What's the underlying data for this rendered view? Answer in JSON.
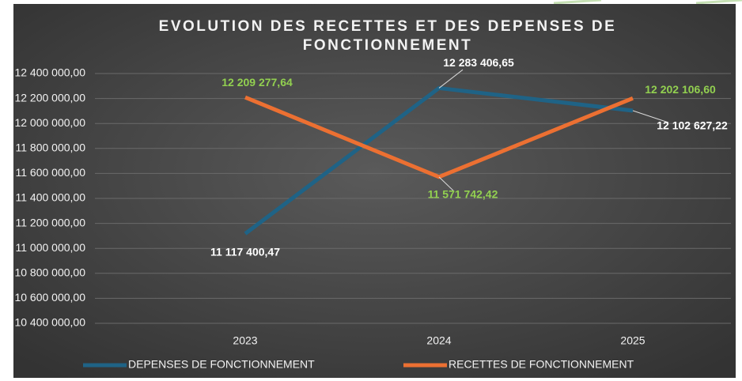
{
  "chart_data": {
    "type": "line",
    "title": "EVOLUTION DES RECETTES ET DES DEPENSES DE FONCTIONNEMENT",
    "categories": [
      "2023",
      "2024",
      "2025"
    ],
    "series": [
      {
        "name": "DEPENSES DE FONCTIONNEMENT",
        "color": "#1f6386",
        "label_color": "#ffffff",
        "values": [
          11117400.47,
          12283406.65,
          12102627.22
        ],
        "value_labels": [
          "11 117 400,47",
          "12 283 406,65",
          "12 102 627,22"
        ]
      },
      {
        "name": "RECETTES DE FONCTIONNEMENT",
        "color": "#ec7032",
        "label_color": "#92d050",
        "values": [
          12209277.64,
          11571742.42,
          12202106.6
        ],
        "value_labels": [
          "12 209 277,64",
          "11 571 742,42",
          "12 202 106,60"
        ]
      }
    ],
    "ylim": [
      10400000,
      12400000
    ],
    "yticks": [
      {
        "value": 10400000,
        "label": "10 400 000,00"
      },
      {
        "value": 10600000,
        "label": "10 600 000,00"
      },
      {
        "value": 10800000,
        "label": "10 800 000,00"
      },
      {
        "value": 11000000,
        "label": "11 000 000,00"
      },
      {
        "value": 11200000,
        "label": "11 200 000,00"
      },
      {
        "value": 11400000,
        "label": "11 400 000,00"
      },
      {
        "value": 11600000,
        "label": "11 600 000,00"
      },
      {
        "value": 11800000,
        "label": "11 800 000,00"
      },
      {
        "value": 12000000,
        "label": "12 000 000,00"
      },
      {
        "value": 12200000,
        "label": "12 200 000,00"
      },
      {
        "value": 12400000,
        "label": "12 400 000,00"
      }
    ],
    "grid": true,
    "legend": "bottom"
  }
}
